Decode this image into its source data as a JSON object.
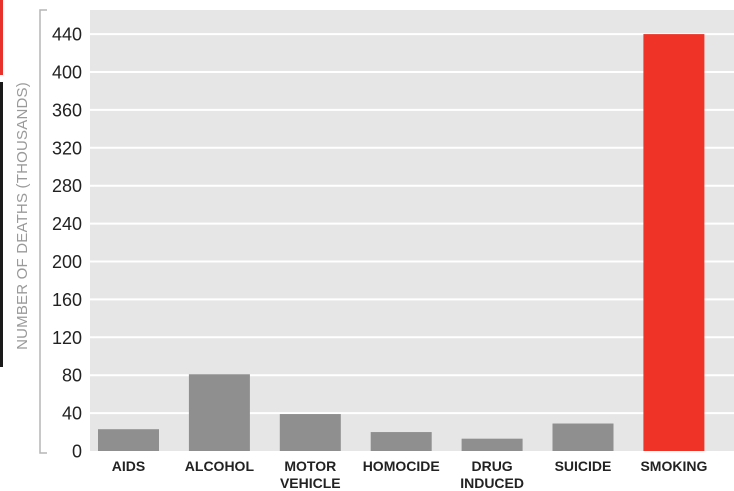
{
  "colors": {
    "panel": "#e6e6e6",
    "grid": "#ffffff",
    "bar": "#8f8f8f",
    "highlight": "#ef3327",
    "edge_red": "#e8312a",
    "edge_dark": "#1a1a1a"
  },
  "chart_data": {
    "type": "bar",
    "title": "",
    "xlabel": "",
    "ylabel": "NUMBER OF DEATHS (THOUSANDS)",
    "ylim": [
      0,
      460
    ],
    "yticks": [
      0,
      40,
      80,
      120,
      160,
      200,
      240,
      280,
      320,
      360,
      400,
      440
    ],
    "grid": true,
    "categories": [
      [
        "AIDS"
      ],
      [
        "ALCOHOL"
      ],
      [
        "MOTOR",
        "VEHICLE"
      ],
      [
        "HOMOCIDE"
      ],
      [
        "DRUG",
        "INDUCED"
      ],
      [
        "SUICIDE"
      ],
      [
        "SMOKING"
      ]
    ],
    "values": [
      23,
      81,
      39,
      20,
      13,
      29,
      440
    ],
    "highlight_index": 6
  }
}
